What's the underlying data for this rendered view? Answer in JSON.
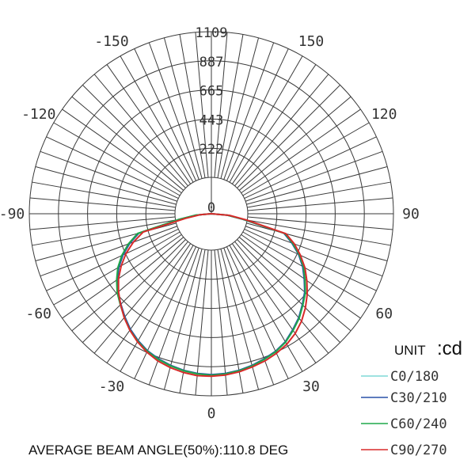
{
  "chart_data": {
    "type": "polar",
    "radial_ticks": [
      "222",
      "443",
      "665",
      "887",
      "1109"
    ],
    "rmax": 1109,
    "angle_labels": [
      {
        "text": "0",
        "angle": 0
      },
      {
        "text": "30",
        "angle": 30
      },
      {
        "text": "-30",
        "angle": -30
      },
      {
        "text": "60",
        "angle": 60
      },
      {
        "text": "-60",
        "angle": -60
      },
      {
        "text": "90",
        "angle": 90
      },
      {
        "text": "-90",
        "angle": -90
      },
      {
        "text": "120",
        "angle": 120
      },
      {
        "text": "-120",
        "angle": -120
      },
      {
        "text": "150",
        "angle": 150
      },
      {
        "text": "-150",
        "angle": -150
      }
    ],
    "unit_prefix": "UNIT",
    "unit_value": ":cd",
    "series": [
      {
        "name": "C0/180",
        "color": "#7ed9d6",
        "points": [
          [
            -90,
            0
          ],
          [
            -85,
            95
          ],
          [
            -80,
            200
          ],
          [
            -75,
            300
          ],
          [
            -70,
            390
          ],
          [
            -65,
            470
          ],
          [
            -60,
            540
          ],
          [
            -55,
            600
          ],
          [
            -50,
            655
          ],
          [
            -45,
            700
          ],
          [
            -40,
            750
          ],
          [
            -35,
            800
          ],
          [
            -30,
            840
          ],
          [
            -25,
            875
          ],
          [
            -20,
            900
          ],
          [
            -15,
            920
          ],
          [
            -10,
            935
          ],
          [
            -5,
            945
          ],
          [
            0,
            950
          ],
          [
            5,
            945
          ],
          [
            10,
            935
          ],
          [
            15,
            920
          ],
          [
            20,
            900
          ],
          [
            25,
            880
          ],
          [
            30,
            850
          ],
          [
            35,
            805
          ],
          [
            40,
            760
          ],
          [
            45,
            705
          ],
          [
            50,
            655
          ],
          [
            55,
            590
          ],
          [
            60,
            530
          ],
          [
            65,
            460
          ],
          [
            70,
            380
          ],
          [
            75,
            300
          ],
          [
            80,
            200
          ],
          [
            85,
            100
          ],
          [
            90,
            0
          ]
        ]
      },
      {
        "name": "C30/210",
        "color": "#2850a8",
        "points": [
          [
            -90,
            0
          ],
          [
            -85,
            92
          ],
          [
            -80,
            195
          ],
          [
            -75,
            295
          ],
          [
            -70,
            385
          ],
          [
            -65,
            465
          ],
          [
            -60,
            535
          ],
          [
            -55,
            597
          ],
          [
            -50,
            652
          ],
          [
            -45,
            697
          ],
          [
            -40,
            747
          ],
          [
            -35,
            797
          ],
          [
            -30,
            838
          ],
          [
            -25,
            873
          ],
          [
            -20,
            898
          ],
          [
            -15,
            918
          ],
          [
            -10,
            933
          ],
          [
            -5,
            943
          ],
          [
            0,
            948
          ],
          [
            5,
            943
          ],
          [
            10,
            933
          ],
          [
            15,
            918
          ],
          [
            20,
            898
          ],
          [
            25,
            878
          ],
          [
            30,
            848
          ],
          [
            35,
            802
          ],
          [
            40,
            757
          ],
          [
            45,
            702
          ],
          [
            50,
            650
          ],
          [
            55,
            585
          ],
          [
            60,
            525
          ],
          [
            65,
            455
          ],
          [
            70,
            375
          ],
          [
            75,
            295
          ],
          [
            80,
            195
          ],
          [
            85,
            95
          ],
          [
            90,
            0
          ]
        ]
      },
      {
        "name": "C60/240",
        "color": "#1fa84a",
        "points": [
          [
            -90,
            0
          ],
          [
            -85,
            98
          ],
          [
            -80,
            205
          ],
          [
            -75,
            305
          ],
          [
            -70,
            395
          ],
          [
            -65,
            475
          ],
          [
            -60,
            545
          ],
          [
            -55,
            603
          ],
          [
            -50,
            658
          ],
          [
            -45,
            703
          ],
          [
            -40,
            753
          ],
          [
            -35,
            803
          ],
          [
            -30,
            843
          ],
          [
            -25,
            878
          ],
          [
            -20,
            903
          ],
          [
            -15,
            922
          ],
          [
            -10,
            937
          ],
          [
            -5,
            947
          ],
          [
            0,
            952
          ],
          [
            5,
            947
          ],
          [
            10,
            937
          ],
          [
            15,
            922
          ],
          [
            20,
            902
          ],
          [
            25,
            882
          ],
          [
            30,
            852
          ],
          [
            35,
            807
          ],
          [
            40,
            762
          ],
          [
            45,
            707
          ],
          [
            50,
            657
          ],
          [
            55,
            592
          ],
          [
            60,
            532
          ],
          [
            65,
            462
          ],
          [
            70,
            382
          ],
          [
            75,
            302
          ],
          [
            80,
            202
          ],
          [
            85,
            98
          ],
          [
            90,
            0
          ]
        ]
      },
      {
        "name": "C90/270",
        "color": "#d82a2a",
        "points": [
          [
            -90,
            0
          ],
          [
            -85,
            70
          ],
          [
            -80,
            160
          ],
          [
            -75,
            260
          ],
          [
            -70,
            355
          ],
          [
            -65,
            440
          ],
          [
            -60,
            515
          ],
          [
            -55,
            585
          ],
          [
            -50,
            645
          ],
          [
            -45,
            700
          ],
          [
            -40,
            755
          ],
          [
            -35,
            805
          ],
          [
            -30,
            848
          ],
          [
            -25,
            885
          ],
          [
            -20,
            915
          ],
          [
            -15,
            935
          ],
          [
            -10,
            950
          ],
          [
            -5,
            960
          ],
          [
            0,
            960
          ],
          [
            5,
            955
          ],
          [
            10,
            945
          ],
          [
            15,
            930
          ],
          [
            20,
            915
          ],
          [
            25,
            895
          ],
          [
            30,
            870
          ],
          [
            35,
            835
          ],
          [
            40,
            790
          ],
          [
            45,
            735
          ],
          [
            50,
            675
          ],
          [
            55,
            610
          ],
          [
            60,
            545
          ],
          [
            65,
            470
          ],
          [
            70,
            395
          ],
          [
            75,
            310
          ],
          [
            80,
            215
          ],
          [
            85,
            110
          ],
          [
            90,
            0
          ]
        ]
      }
    ]
  },
  "footnote": "AVERAGE BEAM ANGLE(50%):110.8 DEG"
}
